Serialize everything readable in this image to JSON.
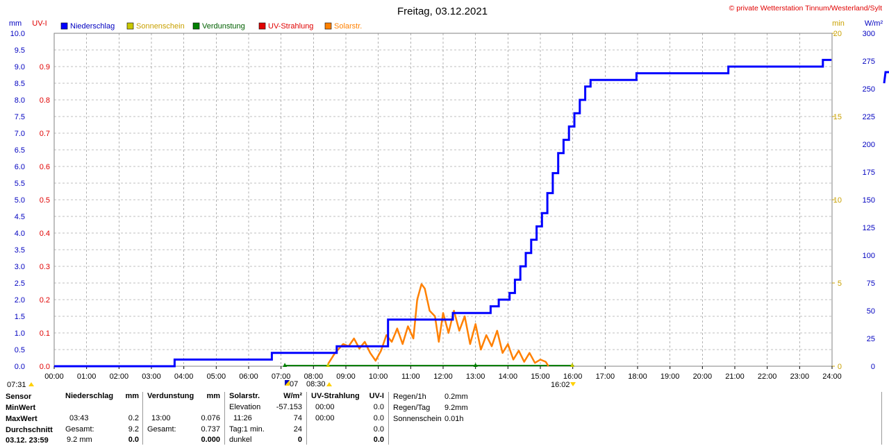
{
  "header": {
    "title": "Freitag, 03.12.2021",
    "copyright": "© private Wetterstation Tinnum/Westerland/Sylt"
  },
  "colors": {
    "niederschlag": "#0000ff",
    "sonnenschein": "#c8c800",
    "verdunstung": "#008000",
    "uv": "#e00000",
    "solar": "#ff8000",
    "sun_axis": "#c8a000",
    "grid": "#808080"
  },
  "chart_data": {
    "type": "line",
    "title": "Freitag, 03.12.2021",
    "legend": [
      "Niederschlag",
      "Sonnenschein",
      "Verdunstung",
      "UV-Strahlung",
      "Solarstr."
    ],
    "legend_placement": "top-left",
    "grid": true,
    "axes": {
      "left_mm": {
        "unit": "mm",
        "range": [
          0,
          10
        ],
        "ticks": [
          "0.0",
          "0.5",
          "1.0",
          "1.5",
          "2.0",
          "2.5",
          "3.0",
          "3.5",
          "4.0",
          "4.5",
          "5.0",
          "5.5",
          "6.0",
          "6.5",
          "7.0",
          "7.5",
          "8.0",
          "8.5",
          "9.0",
          "9.5",
          "10.0"
        ]
      },
      "left_uv": {
        "unit": "UV-I",
        "range": [
          0,
          1
        ],
        "ticks": [
          "0.0",
          "0.1",
          "0.2",
          "0.3",
          "0.4",
          "0.5",
          "0.6",
          "0.7",
          "0.8",
          "0.9"
        ]
      },
      "right_min": {
        "unit": "min",
        "range": [
          0,
          20
        ],
        "ticks": [
          "0",
          "5",
          "10",
          "15",
          "20"
        ]
      },
      "right_wm2": {
        "unit": "W/m²",
        "range": [
          0,
          300
        ],
        "ticks": [
          "0",
          "25",
          "50",
          "75",
          "100",
          "125",
          "150",
          "175",
          "200",
          "225",
          "250",
          "275",
          "300"
        ]
      },
      "x": {
        "range_hours": [
          0,
          24
        ],
        "ticks": [
          "00:00",
          "01:00",
          "02:00",
          "03:00",
          "04:00",
          "05:00",
          "06:00",
          "07:00",
          "08:00",
          "09:00",
          "10:00",
          "11:00",
          "12:00",
          "13:00",
          "14:00",
          "15:00",
          "16:00",
          "17:00",
          "18:00",
          "19:00",
          "20:00",
          "21:00",
          "22:00",
          "23:00",
          "24:00"
        ]
      }
    },
    "markers": {
      "sunrise": "07:31",
      "sunset": "16:02",
      "m1": "07:07",
      "m2": "08:30"
    },
    "series": [
      {
        "name": "Niederschlag",
        "axis": "left_mm",
        "step": true,
        "x": [
          "00:00",
          "03:43",
          "06:43",
          "08:43",
          "10:18",
          "12:18",
          "13:28",
          "13:43",
          "14:03",
          "14:13",
          "14:23",
          "14:33",
          "14:43",
          "14:53",
          "15:03",
          "15:13",
          "15:23",
          "15:33",
          "15:43",
          "15:53",
          "16:03",
          "16:13",
          "16:23",
          "16:33",
          "16:48",
          "17:58",
          "20:48",
          "23:43",
          "23:59"
        ],
        "values": [
          0.0,
          0.2,
          0.4,
          0.6,
          1.4,
          1.6,
          1.8,
          2.0,
          2.2,
          2.6,
          3.0,
          3.4,
          3.8,
          4.2,
          4.6,
          5.2,
          5.8,
          6.4,
          6.8,
          7.2,
          7.6,
          8.0,
          8.4,
          8.6,
          8.6,
          8.8,
          9.0,
          9.2,
          9.2
        ]
      },
      {
        "name": "Solarstr.",
        "axis": "right_wm2",
        "x": [
          "08:27",
          "08:40",
          "08:55",
          "09:05",
          "09:15",
          "09:25",
          "09:35",
          "09:45",
          "09:55",
          "10:05",
          "10:15",
          "10:25",
          "10:35",
          "10:45",
          "10:55",
          "11:05",
          "11:12",
          "11:20",
          "11:26",
          "11:35",
          "11:45",
          "11:52",
          "12:00",
          "12:10",
          "12:20",
          "12:30",
          "12:40",
          "12:50",
          "13:00",
          "13:10",
          "13:20",
          "13:30",
          "13:40",
          "13:50",
          "14:00",
          "14:10",
          "14:20",
          "14:30",
          "14:40",
          "14:50",
          "15:00",
          "15:10",
          "15:15"
        ],
        "values": [
          2,
          12,
          20,
          18,
          25,
          16,
          22,
          12,
          5,
          14,
          28,
          22,
          34,
          20,
          36,
          25,
          60,
          74,
          70,
          50,
          45,
          22,
          48,
          30,
          50,
          32,
          45,
          20,
          38,
          15,
          28,
          18,
          32,
          12,
          20,
          6,
          14,
          4,
          12,
          3,
          6,
          4,
          0
        ]
      },
      {
        "name": "Sonnenschein",
        "axis": "right_min",
        "x": [
          "00:00",
          "24:00"
        ],
        "values": [
          0,
          0
        ]
      },
      {
        "name": "Verdunstung",
        "axis": "left_mm",
        "x": [
          "00:00",
          "24:00"
        ],
        "values": [
          0,
          0
        ]
      },
      {
        "name": "UV-Strahlung",
        "axis": "left_uv",
        "x": [
          "00:00",
          "24:00"
        ],
        "values": [
          0,
          0
        ]
      }
    ],
    "next_day_stub": {
      "niederschlag_start": 9.0
    }
  },
  "stats": {
    "col1": {
      "header": "Sensor",
      "rows": [
        "MinWert",
        "MaxWert",
        "Durchschnitt",
        "03.12. 23:59"
      ]
    },
    "niederschlag": {
      "header": "Niederschlag",
      "unit": "mm",
      "rows": [
        {
          "label": "",
          "value": ""
        },
        {
          "label": "03:43",
          "value": "0.2"
        },
        {
          "label": "Gesamt:",
          "value": "9.2"
        },
        {
          "label": "9.2 mm",
          "value": "0.0"
        }
      ]
    },
    "verdunstung": {
      "header": "Verdunstung",
      "unit": "mm",
      "rows": [
        {
          "label": "",
          "value": ""
        },
        {
          "label": "13:00",
          "value": "0.076"
        },
        {
          "label": "Gesamt:",
          "value": "0.737"
        },
        {
          "label": "",
          "value": "0.000"
        }
      ]
    },
    "solar": {
      "header": "Solarstr.",
      "unit": "W/m²",
      "rows": [
        {
          "label": "Elevation",
          "value": "-57.153"
        },
        {
          "label": "11:26",
          "value": "74"
        },
        {
          "label": "Tag:1 min.",
          "value": "24"
        },
        {
          "label": "dunkel",
          "value": "0"
        }
      ]
    },
    "uv": {
      "header": "UV-Strahlung",
      "unit": "UV-I",
      "rows": [
        {
          "label": "00:00",
          "value": "0.0"
        },
        {
          "label": "00:00",
          "value": "0.0"
        },
        {
          "label": "",
          "value": "0.0"
        },
        {
          "label": "",
          "value": "0.0"
        }
      ]
    },
    "rain": {
      "rows": [
        {
          "label": "Regen/1h",
          "value": "0.2mm"
        },
        {
          "label": "Regen/Tag",
          "value": "9.2mm"
        },
        {
          "label": "Sonnenschein",
          "value": "0.01h"
        }
      ]
    }
  }
}
